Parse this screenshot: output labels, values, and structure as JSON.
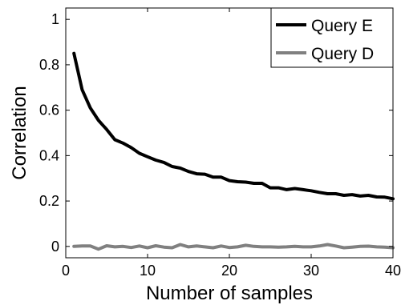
{
  "chart_data": {
    "type": "line",
    "title": "",
    "xlabel": "Number of samples",
    "ylabel": "Correlation",
    "xlim": [
      0,
      40
    ],
    "ylim": [
      -0.05,
      1.05
    ],
    "xticks": [
      "0",
      "10",
      "20",
      "30",
      "40"
    ],
    "yticks": [
      "0",
      "0.2",
      "0.4",
      "0.6",
      "0.8",
      "1"
    ],
    "grid": false,
    "legend_position": "top-right",
    "series": [
      {
        "name": "Query E",
        "color": "#000000",
        "x": [
          1,
          2,
          3,
          4,
          5,
          6,
          7,
          8,
          9,
          10,
          11,
          12,
          13,
          14,
          15,
          16,
          17,
          18,
          19,
          20,
          21,
          22,
          23,
          24,
          25,
          26,
          27,
          28,
          29,
          30,
          31,
          32,
          33,
          34,
          35,
          36,
          37,
          38,
          39,
          40
        ],
        "values": [
          0.85,
          0.69,
          0.61,
          0.555,
          0.515,
          0.47,
          0.455,
          0.435,
          0.41,
          0.395,
          0.38,
          0.37,
          0.352,
          0.345,
          0.33,
          0.32,
          0.318,
          0.305,
          0.305,
          0.29,
          0.285,
          0.283,
          0.278,
          0.278,
          0.258,
          0.258,
          0.25,
          0.255,
          0.25,
          0.245,
          0.238,
          0.232,
          0.232,
          0.225,
          0.228,
          0.222,
          0.225,
          0.218,
          0.217,
          0.21
        ]
      },
      {
        "name": "Query D",
        "color": "#808080",
        "x": [
          1,
          2,
          3,
          4,
          5,
          6,
          7,
          8,
          9,
          10,
          11,
          12,
          13,
          14,
          15,
          16,
          17,
          18,
          19,
          20,
          21,
          22,
          23,
          24,
          25,
          26,
          27,
          28,
          29,
          30,
          31,
          32,
          33,
          34,
          35,
          36,
          37,
          38,
          39,
          40
        ],
        "values": [
          0.0,
          0.002,
          0.002,
          -0.012,
          0.003,
          -0.002,
          0.0,
          -0.005,
          0.002,
          -0.006,
          0.003,
          -0.003,
          -0.006,
          0.008,
          -0.002,
          0.002,
          -0.002,
          -0.006,
          0.002,
          -0.005,
          -0.002,
          0.005,
          0.0,
          -0.002,
          -0.002,
          -0.003,
          -0.002,
          0.0,
          -0.002,
          -0.002,
          0.002,
          0.008,
          0.002,
          -0.006,
          -0.003,
          0.0,
          0.001,
          -0.002,
          -0.003,
          -0.006
        ]
      }
    ]
  }
}
